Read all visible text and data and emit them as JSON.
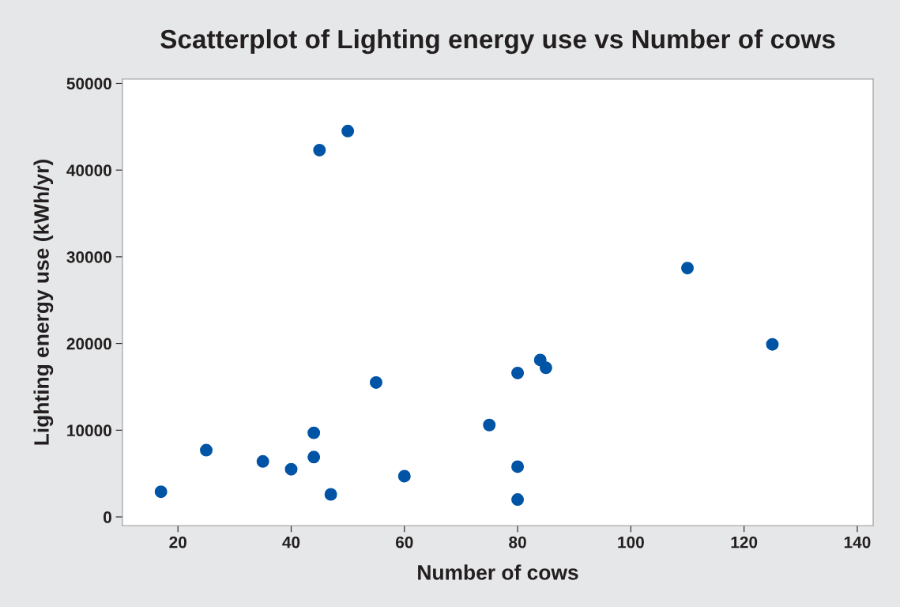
{
  "chart_data": {
    "type": "scatter",
    "title": "Scatterplot of Lighting energy use vs Number of cows",
    "xlabel": "Number of cows",
    "ylabel": "Lighting energy use (kWh/yr)",
    "x": [
      17,
      25,
      35,
      40,
      44,
      44,
      45,
      47,
      50,
      55,
      60,
      75,
      80,
      80,
      80,
      84,
      85,
      110,
      125
    ],
    "series": [
      {
        "color": "#0054a6",
        "values": [
          2900,
          7700,
          6400,
          5500,
          9700,
          6900,
          42300,
          2600,
          44500,
          15500,
          4700,
          10600,
          16600,
          5800,
          2000,
          18100,
          17200,
          28700,
          19900
        ]
      }
    ],
    "xlim": [
      10.2,
      142.8
    ],
    "xticks": [
      20,
      40,
      60,
      80,
      100,
      120,
      140
    ],
    "ylim": [
      -1000,
      50500
    ],
    "yticks": [
      0,
      10000,
      20000,
      30000,
      40000,
      50000
    ],
    "marker": "circle",
    "grid": false,
    "legend": false
  }
}
